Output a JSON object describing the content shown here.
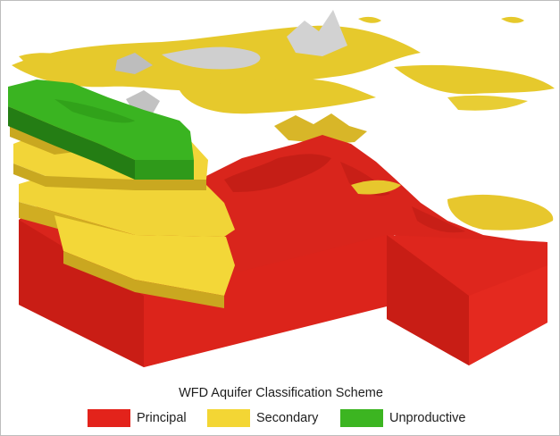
{
  "legend": {
    "title": "WFD Aquifer Classification Scheme",
    "items": [
      {
        "label": "Principal",
        "color": "#e3231b"
      },
      {
        "label": "Secondary",
        "color": "#f3d634"
      },
      {
        "label": "Unproductive",
        "color": "#3cb521"
      }
    ]
  },
  "colors": {
    "principal_top": "#d8251c",
    "principal_front": "#dc241b",
    "principal_side": "#b31810",
    "secondary": "#f3d634",
    "secondary_shade": "#c9a81f",
    "unproductive": "#3cb521",
    "unproductive_shade": "#237a14",
    "outcrop_grey": "#c8c8c8"
  }
}
